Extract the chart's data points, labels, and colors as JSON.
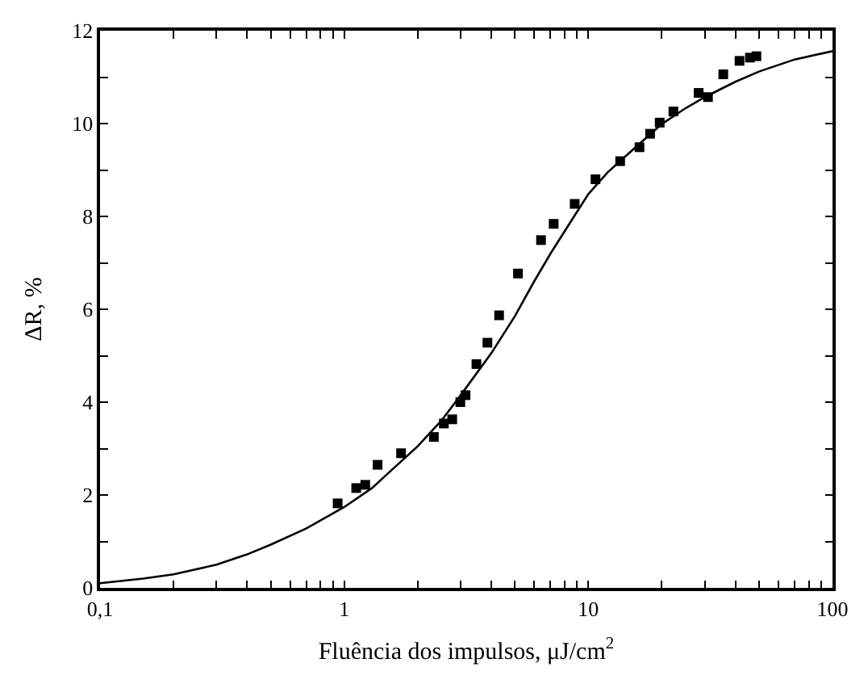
{
  "chart_data": {
    "type": "scatter",
    "xlabel": "Fluência dos impulsos, μJ/cm$^{2}$",
    "ylabel": "ΔR, %",
    "log": "x",
    "marker": "square",
    "xlim": [
      0.1,
      100
    ],
    "ylim": [
      0,
      12
    ],
    "xticks": [
      {
        "value": 0.1,
        "label": "0,1"
      },
      {
        "value": 0.2,
        "label": null
      },
      {
        "value": 0.3,
        "label": null
      },
      {
        "value": 0.4,
        "label": null
      },
      {
        "value": 0.5,
        "label": null
      },
      {
        "value": 0.6,
        "label": null
      },
      {
        "value": 0.7,
        "label": null
      },
      {
        "value": 0.8,
        "label": null
      },
      {
        "value": 0.9,
        "label": null
      },
      1,
      {
        "value": 2,
        "label": null
      },
      {
        "value": 3,
        "label": null
      },
      {
        "value": 4,
        "label": null
      },
      {
        "value": 5,
        "label": null
      },
      {
        "value": 6,
        "label": null
      },
      {
        "value": 7,
        "label": null
      },
      {
        "value": 8,
        "label": null
      },
      {
        "value": 9,
        "label": null
      },
      10,
      {
        "value": 20,
        "label": null
      },
      {
        "value": 30,
        "label": null
      },
      {
        "value": 40,
        "label": null
      },
      {
        "value": 50,
        "label": null
      },
      {
        "value": 60,
        "label": null
      },
      {
        "value": 70,
        "label": null
      },
      {
        "value": 80,
        "label": null
      },
      {
        "value": 90,
        "label": null
      },
      100
    ],
    "yticks": [
      0,
      {
        "value": 1,
        "label": null
      },
      2,
      {
        "value": 3,
        "label": null
      },
      4,
      {
        "value": 5,
        "label": null
      },
      6,
      {
        "value": 7,
        "label": null
      },
      8,
      {
        "value": 9,
        "label": null
      },
      10,
      {
        "value": 11,
        "label": null
      },
      12
    ],
    "series": [
      {
        "color": "#000000",
        "x": [
          0.94,
          1.12,
          1.22,
          1.37,
          1.71,
          2.33,
          2.56,
          2.77,
          2.99,
          3.14,
          3.48,
          3.86,
          4.31,
          5.15,
          6.4,
          7.21,
          8.79,
          10.7,
          13.5,
          16.2,
          17.9,
          19.6,
          22.3,
          28.3,
          30.9,
          35.7,
          41.6,
          45.9,
          48.8
        ],
        "values": [
          1.82,
          2.15,
          2.22,
          2.65,
          2.9,
          3.25,
          3.54,
          3.63,
          4.0,
          4.15,
          4.82,
          5.28,
          5.87,
          6.77,
          7.49,
          7.84,
          8.27,
          8.8,
          9.19,
          9.49,
          9.78,
          10.02,
          10.26,
          10.66,
          10.57,
          11.06,
          11.35,
          11.42,
          11.45
        ]
      },
      {
        "type": "line",
        "color": "#000000",
        "marker": "none",
        "line_style": "solid",
        "x": [
          0.1,
          0.15,
          0.2,
          0.3,
          0.4,
          0.5,
          0.7,
          1,
          1.3,
          1.5,
          2,
          2.5,
          3,
          4,
          5,
          6,
          7,
          8.5,
          10,
          12,
          15,
          20,
          25,
          30,
          40,
          50,
          70,
          100
        ],
        "values": [
          0.1,
          0.2,
          0.29,
          0.5,
          0.72,
          0.93,
          1.28,
          1.74,
          2.15,
          2.45,
          3.05,
          3.6,
          4.15,
          5.05,
          5.85,
          6.6,
          7.2,
          7.9,
          8.48,
          8.95,
          9.41,
          9.99,
          10.33,
          10.57,
          10.9,
          11.12,
          11.38,
          11.56
        ]
      }
    ]
  }
}
